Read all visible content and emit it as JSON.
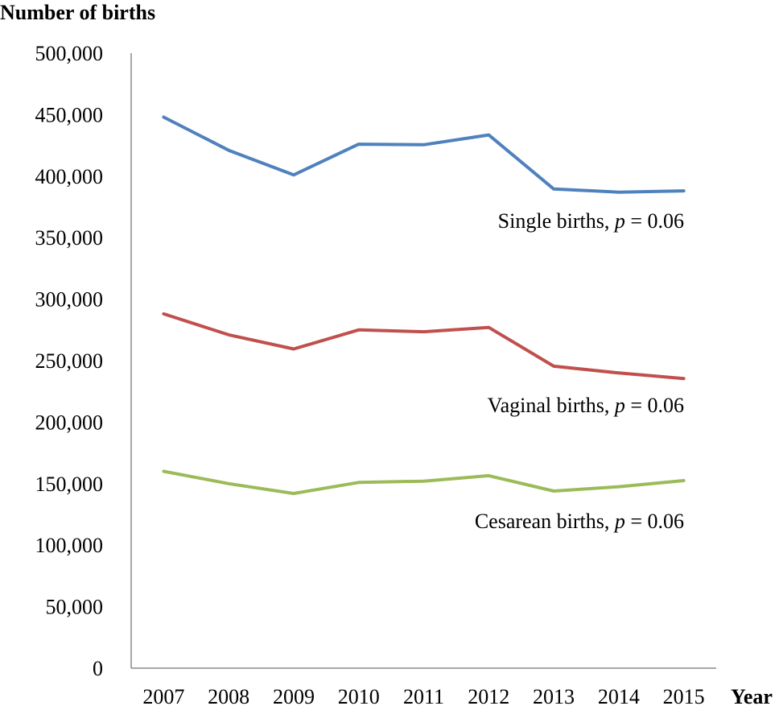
{
  "chart_data": {
    "type": "line",
    "title": "",
    "ylabel": "Number of births",
    "xlabel": "Year",
    "categories": [
      "2007",
      "2008",
      "2009",
      "2010",
      "2011",
      "2012",
      "2013",
      "2014",
      "2015"
    ],
    "ylim": [
      0,
      500000
    ],
    "yticks": [
      0,
      50000,
      100000,
      150000,
      200000,
      250000,
      300000,
      350000,
      400000,
      450000,
      500000
    ],
    "ytick_labels": [
      "0",
      "50,000",
      "100,000",
      "150,000",
      "200,000",
      "250,000",
      "300,000",
      "350,000",
      "400,000",
      "450,000",
      "500,000"
    ],
    "grid": false,
    "series": [
      {
        "key": "single",
        "name": "Single births",
        "color": "#4f81bd",
        "values": [
          448000,
          421000,
          401000,
          426000,
          425500,
          433500,
          389500,
          387000,
          388000
        ],
        "annotation": {
          "prefix": "Single births, ",
          "p": "p",
          "suffix": " = 0.06"
        }
      },
      {
        "key": "vaginal",
        "name": "Vaginal births",
        "color": "#c0504d",
        "values": [
          288000,
          271000,
          259500,
          275000,
          273500,
          277000,
          245500,
          240000,
          235500
        ],
        "annotation": {
          "prefix": "Vaginal births, ",
          "p": "p",
          "suffix": " = 0.06"
        }
      },
      {
        "key": "cesarean",
        "name": "Cesarean births",
        "color": "#9bbb59",
        "values": [
          160000,
          150000,
          142000,
          151000,
          152000,
          156500,
          144000,
          147500,
          152500
        ],
        "annotation": {
          "prefix": "Cesarean births, ",
          "p": "p",
          "suffix": " = 0.06"
        }
      }
    ]
  }
}
